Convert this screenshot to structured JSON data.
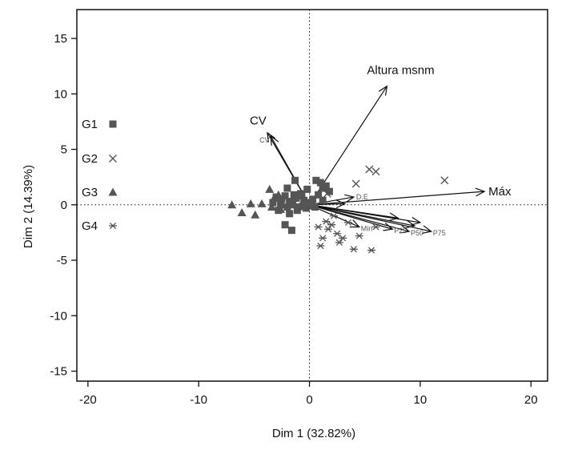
{
  "chart_data": {
    "type": "scatter",
    "subtype": "pca-biplot",
    "title": "",
    "xlabel": "Dim 1 (32.82%)",
    "ylabel": "Dim 2 (14.39%)",
    "xlim": [
      -21,
      21.5
    ],
    "ylim": [
      -15.9,
      17.6
    ],
    "xticks": [
      -20,
      -10,
      0,
      10,
      20
    ],
    "yticks": [
      -15,
      -10,
      -5,
      0,
      5,
      10,
      15
    ],
    "reference_lines": {
      "x": 0,
      "y": 0,
      "style": "dotted"
    },
    "colors": {
      "points": "#555555",
      "arrows": "#111111",
      "axis": "#111111"
    },
    "legend": {
      "placement": "left",
      "items": [
        {
          "label": "G1",
          "marker": "square"
        },
        {
          "label": "G2",
          "marker": "x"
        },
        {
          "label": "G3",
          "marker": "triangle"
        },
        {
          "label": "G4",
          "marker": "asterisk"
        }
      ]
    },
    "variables": [
      {
        "label": "Altura msnm",
        "x": 7.0,
        "y": 10.7,
        "size": "large"
      },
      {
        "label": "CV",
        "x": -3.8,
        "y": 6.5,
        "size": "large"
      },
      {
        "label": "Máx",
        "x": 15.8,
        "y": 1.2,
        "size": "large"
      },
      {
        "label": "CV",
        "x": -3.5,
        "y": 6.2,
        "size": "small"
      },
      {
        "label": "P75",
        "x": 11.0,
        "y": -2.4,
        "size": "small"
      },
      {
        "label": "P50",
        "x": 9.0,
        "y": -2.4,
        "size": "small"
      },
      {
        "label": "P25",
        "x": 7.5,
        "y": -2.2,
        "size": "small"
      },
      {
        "label": "Min",
        "x": 4.5,
        "y": -2.0,
        "size": "small"
      },
      {
        "label": "D.E",
        "x": 4.0,
        "y": 0.7,
        "size": "small"
      },
      {
        "label": "",
        "x": 10.0,
        "y": -1.6,
        "size": "none"
      },
      {
        "label": "",
        "x": 9.5,
        "y": -1.9,
        "size": "none"
      },
      {
        "label": "",
        "x": 8.0,
        "y": -1.2,
        "size": "none"
      },
      {
        "label": "",
        "x": 3.2,
        "y": 0.1,
        "size": "none"
      }
    ],
    "series": [
      {
        "name": "G1",
        "marker": "square",
        "points": [
          [
            -2.5,
            0.5
          ],
          [
            -2.2,
            0.8
          ],
          [
            -1.8,
            0.3
          ],
          [
            -1.5,
            0.0
          ],
          [
            -1.2,
            0.6
          ],
          [
            -1.0,
            -0.2
          ],
          [
            -0.8,
            1.0
          ],
          [
            -0.5,
            0.4
          ],
          [
            -0.3,
            -0.3
          ],
          [
            0.0,
            0.2
          ],
          [
            0.3,
            0.5
          ],
          [
            0.5,
            -0.2
          ],
          [
            0.8,
            0.9
          ],
          [
            1.2,
            1.5
          ],
          [
            1.5,
            1.7
          ],
          [
            1.0,
            2.0
          ],
          [
            -1.3,
            2.2
          ],
          [
            -2.0,
            1.5
          ],
          [
            -2.8,
            -0.5
          ],
          [
            -2.2,
            -1.8
          ],
          [
            -1.6,
            -2.3
          ],
          [
            -1.8,
            -0.8
          ],
          [
            -3.3,
            0.2
          ],
          [
            -3.0,
            0.7
          ],
          [
            -0.2,
            1.4
          ],
          [
            0.6,
            2.2
          ],
          [
            1.8,
            1.2
          ],
          [
            -1.1,
            -0.5
          ],
          [
            0.2,
            -0.1
          ],
          [
            -2.6,
            0.0
          ],
          [
            -1.4,
            0.9
          ],
          [
            -0.6,
            -0.1
          ],
          [
            1.2,
            0.4
          ],
          [
            -0.7,
            0.8
          ],
          [
            -2.0,
            -0.2
          ]
        ]
      },
      {
        "name": "G2",
        "marker": "x",
        "points": [
          [
            12.2,
            2.2
          ],
          [
            5.4,
            3.2
          ],
          [
            6.0,
            3.0
          ],
          [
            4.2,
            1.9
          ],
          [
            1.6,
            1.0
          ]
        ]
      },
      {
        "name": "G3",
        "marker": "triangle",
        "points": [
          [
            -7.0,
            0.0
          ],
          [
            -6.1,
            -0.7
          ],
          [
            -5.3,
            0.1
          ],
          [
            -4.9,
            -0.9
          ],
          [
            -4.3,
            0.1
          ],
          [
            -3.6,
            1.4
          ],
          [
            -3.2,
            0.6
          ],
          [
            -2.6,
            -0.4
          ],
          [
            -3.4,
            -0.2
          ],
          [
            -2.8,
            0.9
          ]
        ]
      },
      {
        "name": "G4",
        "marker": "asterisk",
        "points": [
          [
            1.0,
            -3.7
          ],
          [
            0.8,
            -2.0
          ],
          [
            1.2,
            -3.0
          ],
          [
            2.0,
            -1.8
          ],
          [
            2.5,
            -2.6
          ],
          [
            3.0,
            -3.0
          ],
          [
            4.0,
            -4.0
          ],
          [
            5.6,
            -4.1
          ],
          [
            3.5,
            -1.6
          ],
          [
            2.7,
            -3.4
          ],
          [
            1.7,
            -2.2
          ],
          [
            4.5,
            -2.8
          ],
          [
            6.0,
            -2.0
          ],
          [
            2.2,
            -1.0
          ],
          [
            1.5,
            -1.5
          ]
        ]
      }
    ]
  }
}
